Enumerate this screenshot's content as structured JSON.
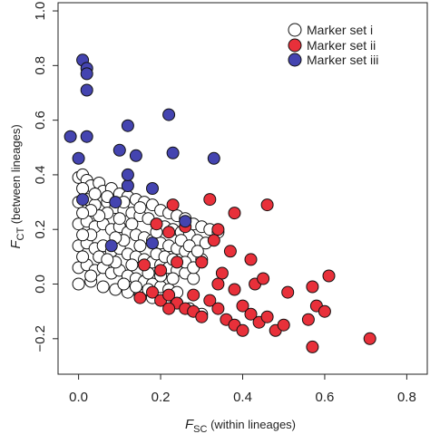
{
  "chart_data": {
    "type": "scatter",
    "xlabel": {
      "symbol": "F",
      "subscript": "SC",
      "text": " (within lineages)"
    },
    "ylabel": {
      "symbol": "F",
      "subscript": "CT",
      "text": " (between lineages)"
    },
    "xlim": [
      -0.05,
      0.85
    ],
    "ylim": [
      -0.33,
      1.03
    ],
    "x_ticks": [
      0.0,
      0.2,
      0.4,
      0.6,
      0.8
    ],
    "x_tick_labels": [
      "0.0",
      "0.2",
      "0.4",
      "0.6",
      "0.8"
    ],
    "y_ticks": [
      -0.2,
      0.0,
      0.2,
      0.4,
      0.6,
      0.8,
      1.0
    ],
    "y_tick_labels": [
      "−0.2",
      "0.0",
      "0.2",
      "0.4",
      "0.6",
      "0.8",
      "1.0"
    ],
    "grid": false,
    "legend_position": "top-right",
    "series": [
      {
        "name": "Marker set i",
        "color": "#ffffff",
        "edge_color": "#111111",
        "region_note": "dense cloud of many points bounded by (0,0), (0,0.40), (0.35,0.19), (0.30,-0.12)",
        "points": [
          [
            0.0,
            0.39
          ],
          [
            0.01,
            0.4
          ],
          [
            0.02,
            0.38
          ],
          [
            0.03,
            0.36
          ],
          [
            0.05,
            0.37
          ],
          [
            0.06,
            0.34
          ],
          [
            0.08,
            0.35
          ],
          [
            0.1,
            0.33
          ],
          [
            0.12,
            0.32
          ],
          [
            0.14,
            0.31
          ],
          [
            0.16,
            0.3
          ],
          [
            0.18,
            0.29
          ],
          [
            0.2,
            0.27
          ],
          [
            0.22,
            0.26
          ],
          [
            0.24,
            0.25
          ],
          [
            0.26,
            0.24
          ],
          [
            0.28,
            0.22
          ],
          [
            0.3,
            0.21
          ],
          [
            0.32,
            0.2
          ],
          [
            0.34,
            0.19
          ],
          [
            0.0,
            0.3
          ],
          [
            0.02,
            0.31
          ],
          [
            0.04,
            0.29
          ],
          [
            0.07,
            0.3
          ],
          [
            0.09,
            0.28
          ],
          [
            0.11,
            0.27
          ],
          [
            0.13,
            0.26
          ],
          [
            0.15,
            0.25
          ],
          [
            0.17,
            0.24
          ],
          [
            0.19,
            0.22
          ],
          [
            0.21,
            0.21
          ],
          [
            0.23,
            0.2
          ],
          [
            0.25,
            0.19
          ],
          [
            0.27,
            0.18
          ],
          [
            0.29,
            0.16
          ],
          [
            0.31,
            0.15
          ],
          [
            0.0,
            0.22
          ],
          [
            0.02,
            0.23
          ],
          [
            0.04,
            0.21
          ],
          [
            0.06,
            0.22
          ],
          [
            0.08,
            0.2
          ],
          [
            0.1,
            0.21
          ],
          [
            0.12,
            0.19
          ],
          [
            0.14,
            0.18
          ],
          [
            0.16,
            0.17
          ],
          [
            0.18,
            0.16
          ],
          [
            0.2,
            0.15
          ],
          [
            0.22,
            0.14
          ],
          [
            0.24,
            0.13
          ],
          [
            0.26,
            0.12
          ],
          [
            0.28,
            0.1
          ],
          [
            0.3,
            0.09
          ],
          [
            0.0,
            0.14
          ],
          [
            0.02,
            0.15
          ],
          [
            0.04,
            0.13
          ],
          [
            0.06,
            0.14
          ],
          [
            0.08,
            0.12
          ],
          [
            0.1,
            0.13
          ],
          [
            0.12,
            0.11
          ],
          [
            0.14,
            0.1
          ],
          [
            0.16,
            0.09
          ],
          [
            0.18,
            0.08
          ],
          [
            0.2,
            0.07
          ],
          [
            0.22,
            0.06
          ],
          [
            0.24,
            0.05
          ],
          [
            0.26,
            0.04
          ],
          [
            0.28,
            0.02
          ],
          [
            0.0,
            0.06
          ],
          [
            0.02,
            0.07
          ],
          [
            0.04,
            0.05
          ],
          [
            0.06,
            0.06
          ],
          [
            0.08,
            0.04
          ],
          [
            0.1,
            0.05
          ],
          [
            0.12,
            0.03
          ],
          [
            0.14,
            0.02
          ],
          [
            0.16,
            0.01
          ],
          [
            0.18,
            0.0
          ],
          [
            0.2,
            -0.01
          ],
          [
            0.22,
            -0.02
          ],
          [
            0.24,
            -0.03
          ],
          [
            0.0,
            0.0
          ],
          [
            0.03,
            0.01
          ],
          [
            0.06,
            -0.01
          ],
          [
            0.09,
            -0.02
          ],
          [
            0.12,
            -0.03
          ],
          [
            0.15,
            -0.04
          ],
          [
            0.18,
            -0.05
          ],
          [
            0.21,
            -0.06
          ],
          [
            0.24,
            -0.07
          ],
          [
            0.27,
            -0.09
          ],
          [
            0.3,
            -0.11
          ],
          [
            0.01,
            0.35
          ],
          [
            0.04,
            0.33
          ],
          [
            0.07,
            0.26
          ],
          [
            0.1,
            0.24
          ],
          [
            0.13,
            0.22
          ],
          [
            0.03,
            0.18
          ],
          [
            0.05,
            0.1
          ],
          [
            0.09,
            0.08
          ],
          [
            0.11,
            0.16
          ],
          [
            0.13,
            0.07
          ],
          [
            0.15,
            0.14
          ],
          [
            0.17,
            0.04
          ],
          [
            0.19,
            0.11
          ],
          [
            0.21,
            0.1
          ],
          [
            0.23,
            0.09
          ],
          [
            0.25,
            0.16
          ],
          [
            0.27,
            0.14
          ],
          [
            0.29,
            0.12
          ],
          [
            0.26,
            0.08
          ],
          [
            0.28,
            0.06
          ],
          [
            0.23,
            0.02
          ],
          [
            0.19,
            0.19
          ],
          [
            0.15,
            0.28
          ],
          [
            0.11,
            0.3
          ],
          [
            0.07,
            0.32
          ],
          [
            0.05,
            0.25
          ],
          [
            0.03,
            0.27
          ],
          [
            0.01,
            0.26
          ],
          [
            0.01,
            0.18
          ],
          [
            0.01,
            0.1
          ],
          [
            0.03,
            0.03
          ],
          [
            0.07,
            0.09
          ],
          [
            0.09,
            0.17
          ],
          [
            0.11,
            0.0
          ],
          [
            0.14,
            -0.01
          ],
          [
            0.17,
            -0.02
          ],
          [
            0.2,
            0.03
          ]
        ]
      },
      {
        "name": "Marker set ii",
        "color": "#e8303a",
        "edge_color": "#111111",
        "points": [
          [
            0.23,
            0.29
          ],
          [
            0.32,
            0.31
          ],
          [
            0.38,
            0.26
          ],
          [
            0.46,
            0.29
          ],
          [
            0.19,
            0.22
          ],
          [
            0.26,
            0.21
          ],
          [
            0.34,
            0.2
          ],
          [
            0.22,
            0.19
          ],
          [
            0.33,
            0.16
          ],
          [
            0.37,
            0.12
          ],
          [
            0.42,
            0.09
          ],
          [
            0.16,
            0.07
          ],
          [
            0.2,
            0.05
          ],
          [
            0.24,
            0.08
          ],
          [
            0.3,
            0.08
          ],
          [
            0.35,
            0.04
          ],
          [
            0.38,
            -0.02
          ],
          [
            0.43,
            0.0
          ],
          [
            0.45,
            0.02
          ],
          [
            0.51,
            -0.03
          ],
          [
            0.57,
            -0.01
          ],
          [
            0.61,
            0.03
          ],
          [
            0.15,
            -0.05
          ],
          [
            0.18,
            -0.03
          ],
          [
            0.2,
            -0.06
          ],
          [
            0.22,
            -0.04
          ],
          [
            0.24,
            -0.07
          ],
          [
            0.26,
            -0.09
          ],
          [
            0.28,
            -0.1
          ],
          [
            0.3,
            -0.12
          ],
          [
            0.32,
            -0.06
          ],
          [
            0.34,
            -0.09
          ],
          [
            0.36,
            -0.13
          ],
          [
            0.38,
            -0.15
          ],
          [
            0.4,
            -0.08
          ],
          [
            0.42,
            -0.11
          ],
          [
            0.44,
            -0.14
          ],
          [
            0.46,
            -0.12
          ],
          [
            0.48,
            -0.17
          ],
          [
            0.5,
            -0.15
          ],
          [
            0.56,
            -0.13
          ],
          [
            0.58,
            -0.08
          ],
          [
            0.6,
            -0.1
          ],
          [
            0.4,
            -0.17
          ],
          [
            0.28,
            -0.04
          ],
          [
            0.22,
            -0.09
          ],
          [
            0.34,
            0.0
          ],
          [
            0.57,
            -0.23
          ],
          [
            0.71,
            -0.2
          ]
        ]
      },
      {
        "name": "Marker set iii",
        "color": "#4444b0",
        "edge_color": "#111111",
        "points": [
          [
            0.01,
            0.82
          ],
          [
            0.02,
            0.79
          ],
          [
            0.02,
            0.77
          ],
          [
            0.02,
            0.71
          ],
          [
            0.02,
            0.54
          ],
          [
            -0.02,
            0.54
          ],
          [
            0.0,
            0.46
          ],
          [
            0.1,
            0.49
          ],
          [
            0.12,
            0.58
          ],
          [
            0.22,
            0.62
          ],
          [
            0.23,
            0.48
          ],
          [
            0.14,
            0.47
          ],
          [
            0.12,
            0.36
          ],
          [
            0.33,
            0.46
          ],
          [
            0.09,
            0.3
          ],
          [
            0.18,
            0.35
          ],
          [
            0.12,
            0.4
          ],
          [
            0.01,
            0.31
          ],
          [
            0.26,
            0.23
          ],
          [
            0.18,
            0.15
          ],
          [
            0.08,
            0.14
          ]
        ]
      }
    ]
  }
}
